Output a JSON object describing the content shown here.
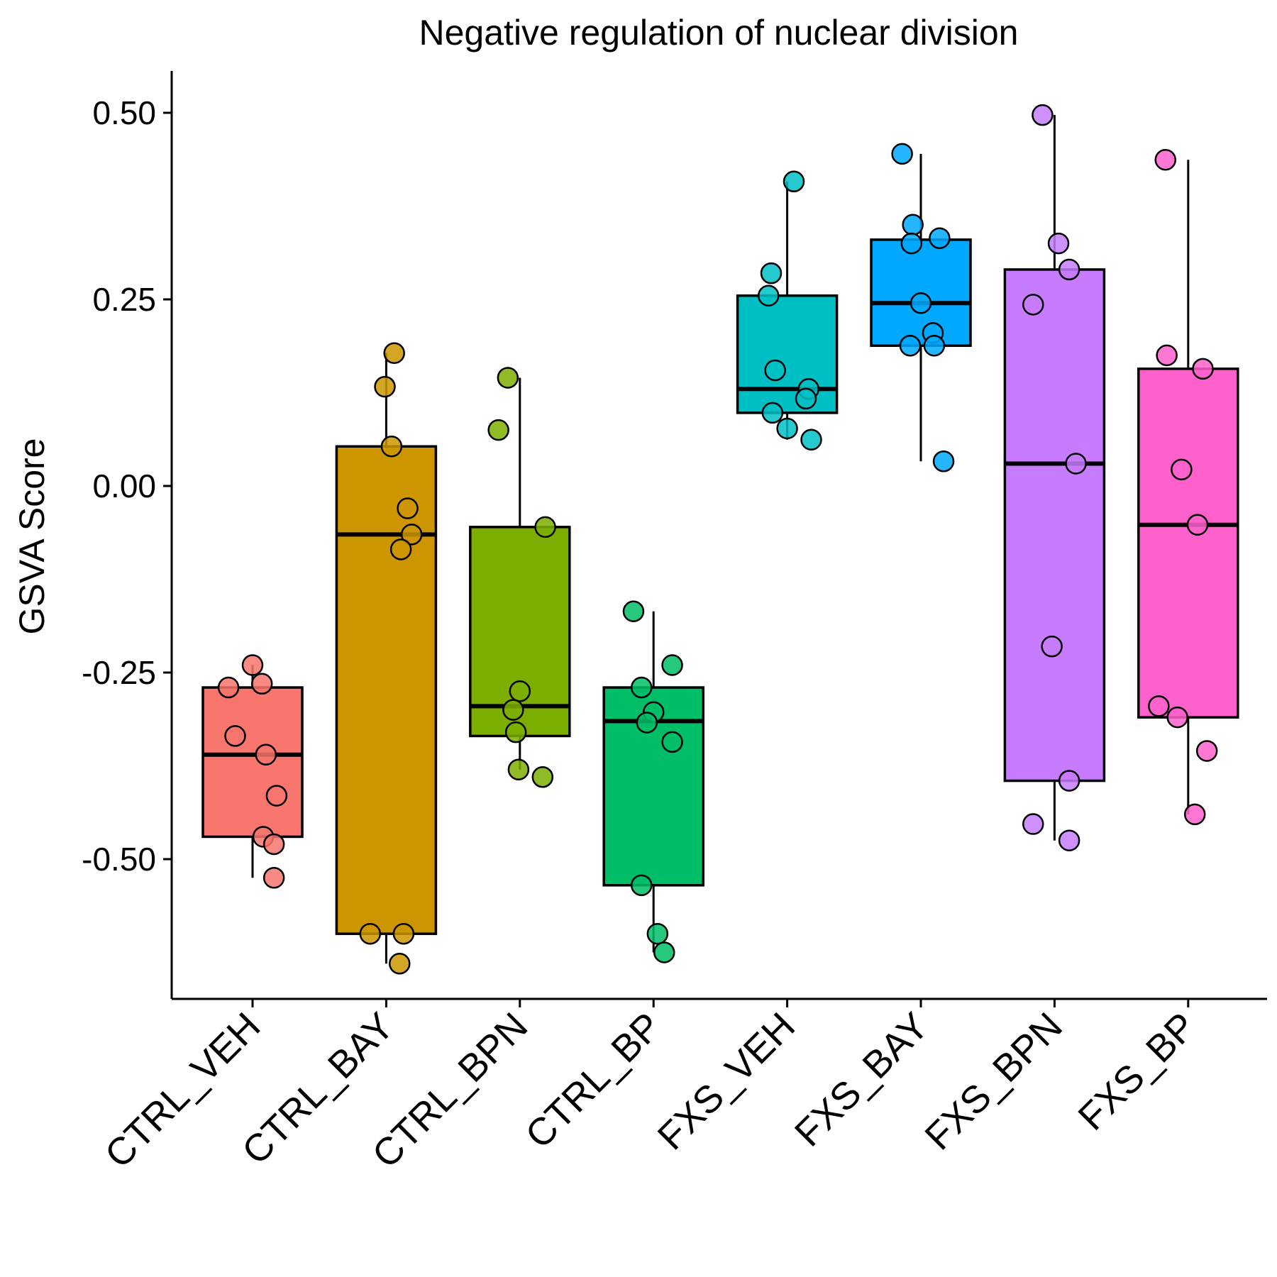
{
  "chart_data": {
    "type": "boxplot",
    "title": "Negative regulation of nuclear division",
    "xlabel": "",
    "ylabel": "GSVA Score",
    "ylim": [
      -0.68,
      0.55
    ],
    "yticks": [
      0.5,
      0.25,
      0.0,
      -0.25,
      -0.5
    ],
    "ytick_labels": [
      "0.50",
      "0.25",
      "0.00",
      "-0.25",
      "-0.50"
    ],
    "grid": false,
    "legend": "none",
    "categories": [
      "CTRL_VEH",
      "CTRL_BAY",
      "CTRL_BPN",
      "CTRL_BP",
      "FXS_VEH",
      "FXS_BAY",
      "FXS_BPN",
      "FXS_BP"
    ],
    "series": [
      {
        "category": "CTRL_VEH",
        "color": "#F8766D",
        "box": {
          "whisker_low": -0.525,
          "q1": -0.47,
          "median": -0.36,
          "q3": -0.27,
          "whisker_high": -0.24
        },
        "points": [
          {
            "x": -0.18,
            "y": -0.27
          },
          {
            "x": 0.0,
            "y": -0.24
          },
          {
            "x": 0.07,
            "y": -0.265
          },
          {
            "x": -0.13,
            "y": -0.335
          },
          {
            "x": 0.1,
            "y": -0.36
          },
          {
            "x": 0.18,
            "y": -0.415
          },
          {
            "x": 0.08,
            "y": -0.47
          },
          {
            "x": 0.16,
            "y": -0.48
          },
          {
            "x": 0.16,
            "y": -0.525
          }
        ]
      },
      {
        "category": "CTRL_BAY",
        "color": "#CD9600",
        "box": {
          "whisker_low": -0.64,
          "q1": -0.6,
          "median": -0.065,
          "q3": 0.053,
          "whisker_high": 0.178
        },
        "points": [
          {
            "x": 0.06,
            "y": 0.178
          },
          {
            "x": -0.01,
            "y": 0.133
          },
          {
            "x": 0.04,
            "y": 0.053
          },
          {
            "x": 0.16,
            "y": -0.03
          },
          {
            "x": 0.19,
            "y": -0.065
          },
          {
            "x": 0.11,
            "y": -0.085
          },
          {
            "x": -0.12,
            "y": -0.6
          },
          {
            "x": 0.13,
            "y": -0.6
          },
          {
            "x": 0.1,
            "y": -0.64
          }
        ]
      },
      {
        "category": "CTRL_BPN",
        "color": "#7CAE00",
        "box": {
          "whisker_low": -0.38,
          "q1": -0.335,
          "median": -0.295,
          "q3": -0.055,
          "whisker_high": 0.145
        },
        "points": [
          {
            "x": -0.09,
            "y": 0.145
          },
          {
            "x": -0.16,
            "y": 0.075
          },
          {
            "x": 0.19,
            "y": -0.055
          },
          {
            "x": 0.0,
            "y": -0.275
          },
          {
            "x": -0.05,
            "y": -0.3
          },
          {
            "x": -0.03,
            "y": -0.33
          },
          {
            "x": -0.01,
            "y": -0.38
          },
          {
            "x": 0.17,
            "y": -0.39
          }
        ]
      },
      {
        "category": "CTRL_BP",
        "color": "#00BE67",
        "box": {
          "whisker_low": -0.625,
          "q1": -0.535,
          "median": -0.315,
          "q3": -0.27,
          "whisker_high": -0.168
        },
        "points": [
          {
            "x": -0.15,
            "y": -0.168
          },
          {
            "x": 0.14,
            "y": -0.24
          },
          {
            "x": -0.09,
            "y": -0.27
          },
          {
            "x": 0.0,
            "y": -0.303
          },
          {
            "x": -0.05,
            "y": -0.317
          },
          {
            "x": 0.14,
            "y": -0.343
          },
          {
            "x": -0.09,
            "y": -0.535
          },
          {
            "x": 0.03,
            "y": -0.6
          },
          {
            "x": 0.08,
            "y": -0.625
          }
        ]
      },
      {
        "category": "FXS_VEH",
        "color": "#00BFC4",
        "box": {
          "whisker_low": 0.062,
          "q1": 0.098,
          "median": 0.13,
          "q3": 0.255,
          "whisker_high": 0.408
        },
        "points": [
          {
            "x": 0.05,
            "y": 0.408
          },
          {
            "x": -0.12,
            "y": 0.285
          },
          {
            "x": -0.14,
            "y": 0.255
          },
          {
            "x": -0.09,
            "y": 0.155
          },
          {
            "x": 0.16,
            "y": 0.13
          },
          {
            "x": 0.14,
            "y": 0.117
          },
          {
            "x": -0.11,
            "y": 0.098
          },
          {
            "x": 0.0,
            "y": 0.077
          },
          {
            "x": 0.18,
            "y": 0.062
          }
        ]
      },
      {
        "category": "FXS_BAY",
        "color": "#00A9FF",
        "box": {
          "whisker_low": 0.033,
          "q1": 0.188,
          "median": 0.245,
          "q3": 0.33,
          "whisker_high": 0.445
        },
        "points": [
          {
            "x": -0.14,
            "y": 0.445
          },
          {
            "x": -0.06,
            "y": 0.35
          },
          {
            "x": 0.14,
            "y": 0.332
          },
          {
            "x": -0.07,
            "y": 0.325
          },
          {
            "x": 0.0,
            "y": 0.245
          },
          {
            "x": 0.09,
            "y": 0.205
          },
          {
            "x": -0.08,
            "y": 0.188
          },
          {
            "x": 0.1,
            "y": 0.188
          },
          {
            "x": 0.17,
            "y": 0.033
          }
        ]
      },
      {
        "category": "FXS_BPN",
        "color": "#C77CFF",
        "box": {
          "whisker_low": -0.475,
          "q1": -0.395,
          "median": 0.03,
          "q3": 0.29,
          "whisker_high": 0.497
        },
        "points": [
          {
            "x": -0.09,
            "y": 0.497
          },
          {
            "x": 0.03,
            "y": 0.325
          },
          {
            "x": 0.11,
            "y": 0.29
          },
          {
            "x": -0.16,
            "y": 0.243
          },
          {
            "x": 0.16,
            "y": 0.03
          },
          {
            "x": -0.02,
            "y": -0.215
          },
          {
            "x": 0.11,
            "y": -0.395
          },
          {
            "x": -0.16,
            "y": -0.453
          },
          {
            "x": 0.11,
            "y": -0.475
          }
        ]
      },
      {
        "category": "FXS_BP",
        "color": "#FF61CC",
        "box": {
          "whisker_low": -0.44,
          "q1": -0.31,
          "median": -0.052,
          "q3": 0.157,
          "whisker_high": 0.437
        },
        "points": [
          {
            "x": -0.17,
            "y": 0.437
          },
          {
            "x": -0.16,
            "y": 0.175
          },
          {
            "x": 0.11,
            "y": 0.157
          },
          {
            "x": -0.05,
            "y": 0.022
          },
          {
            "x": 0.07,
            "y": -0.052
          },
          {
            "x": -0.22,
            "y": -0.295
          },
          {
            "x": -0.08,
            "y": -0.31
          },
          {
            "x": 0.14,
            "y": -0.355
          },
          {
            "x": 0.05,
            "y": -0.44
          }
        ]
      }
    ]
  }
}
